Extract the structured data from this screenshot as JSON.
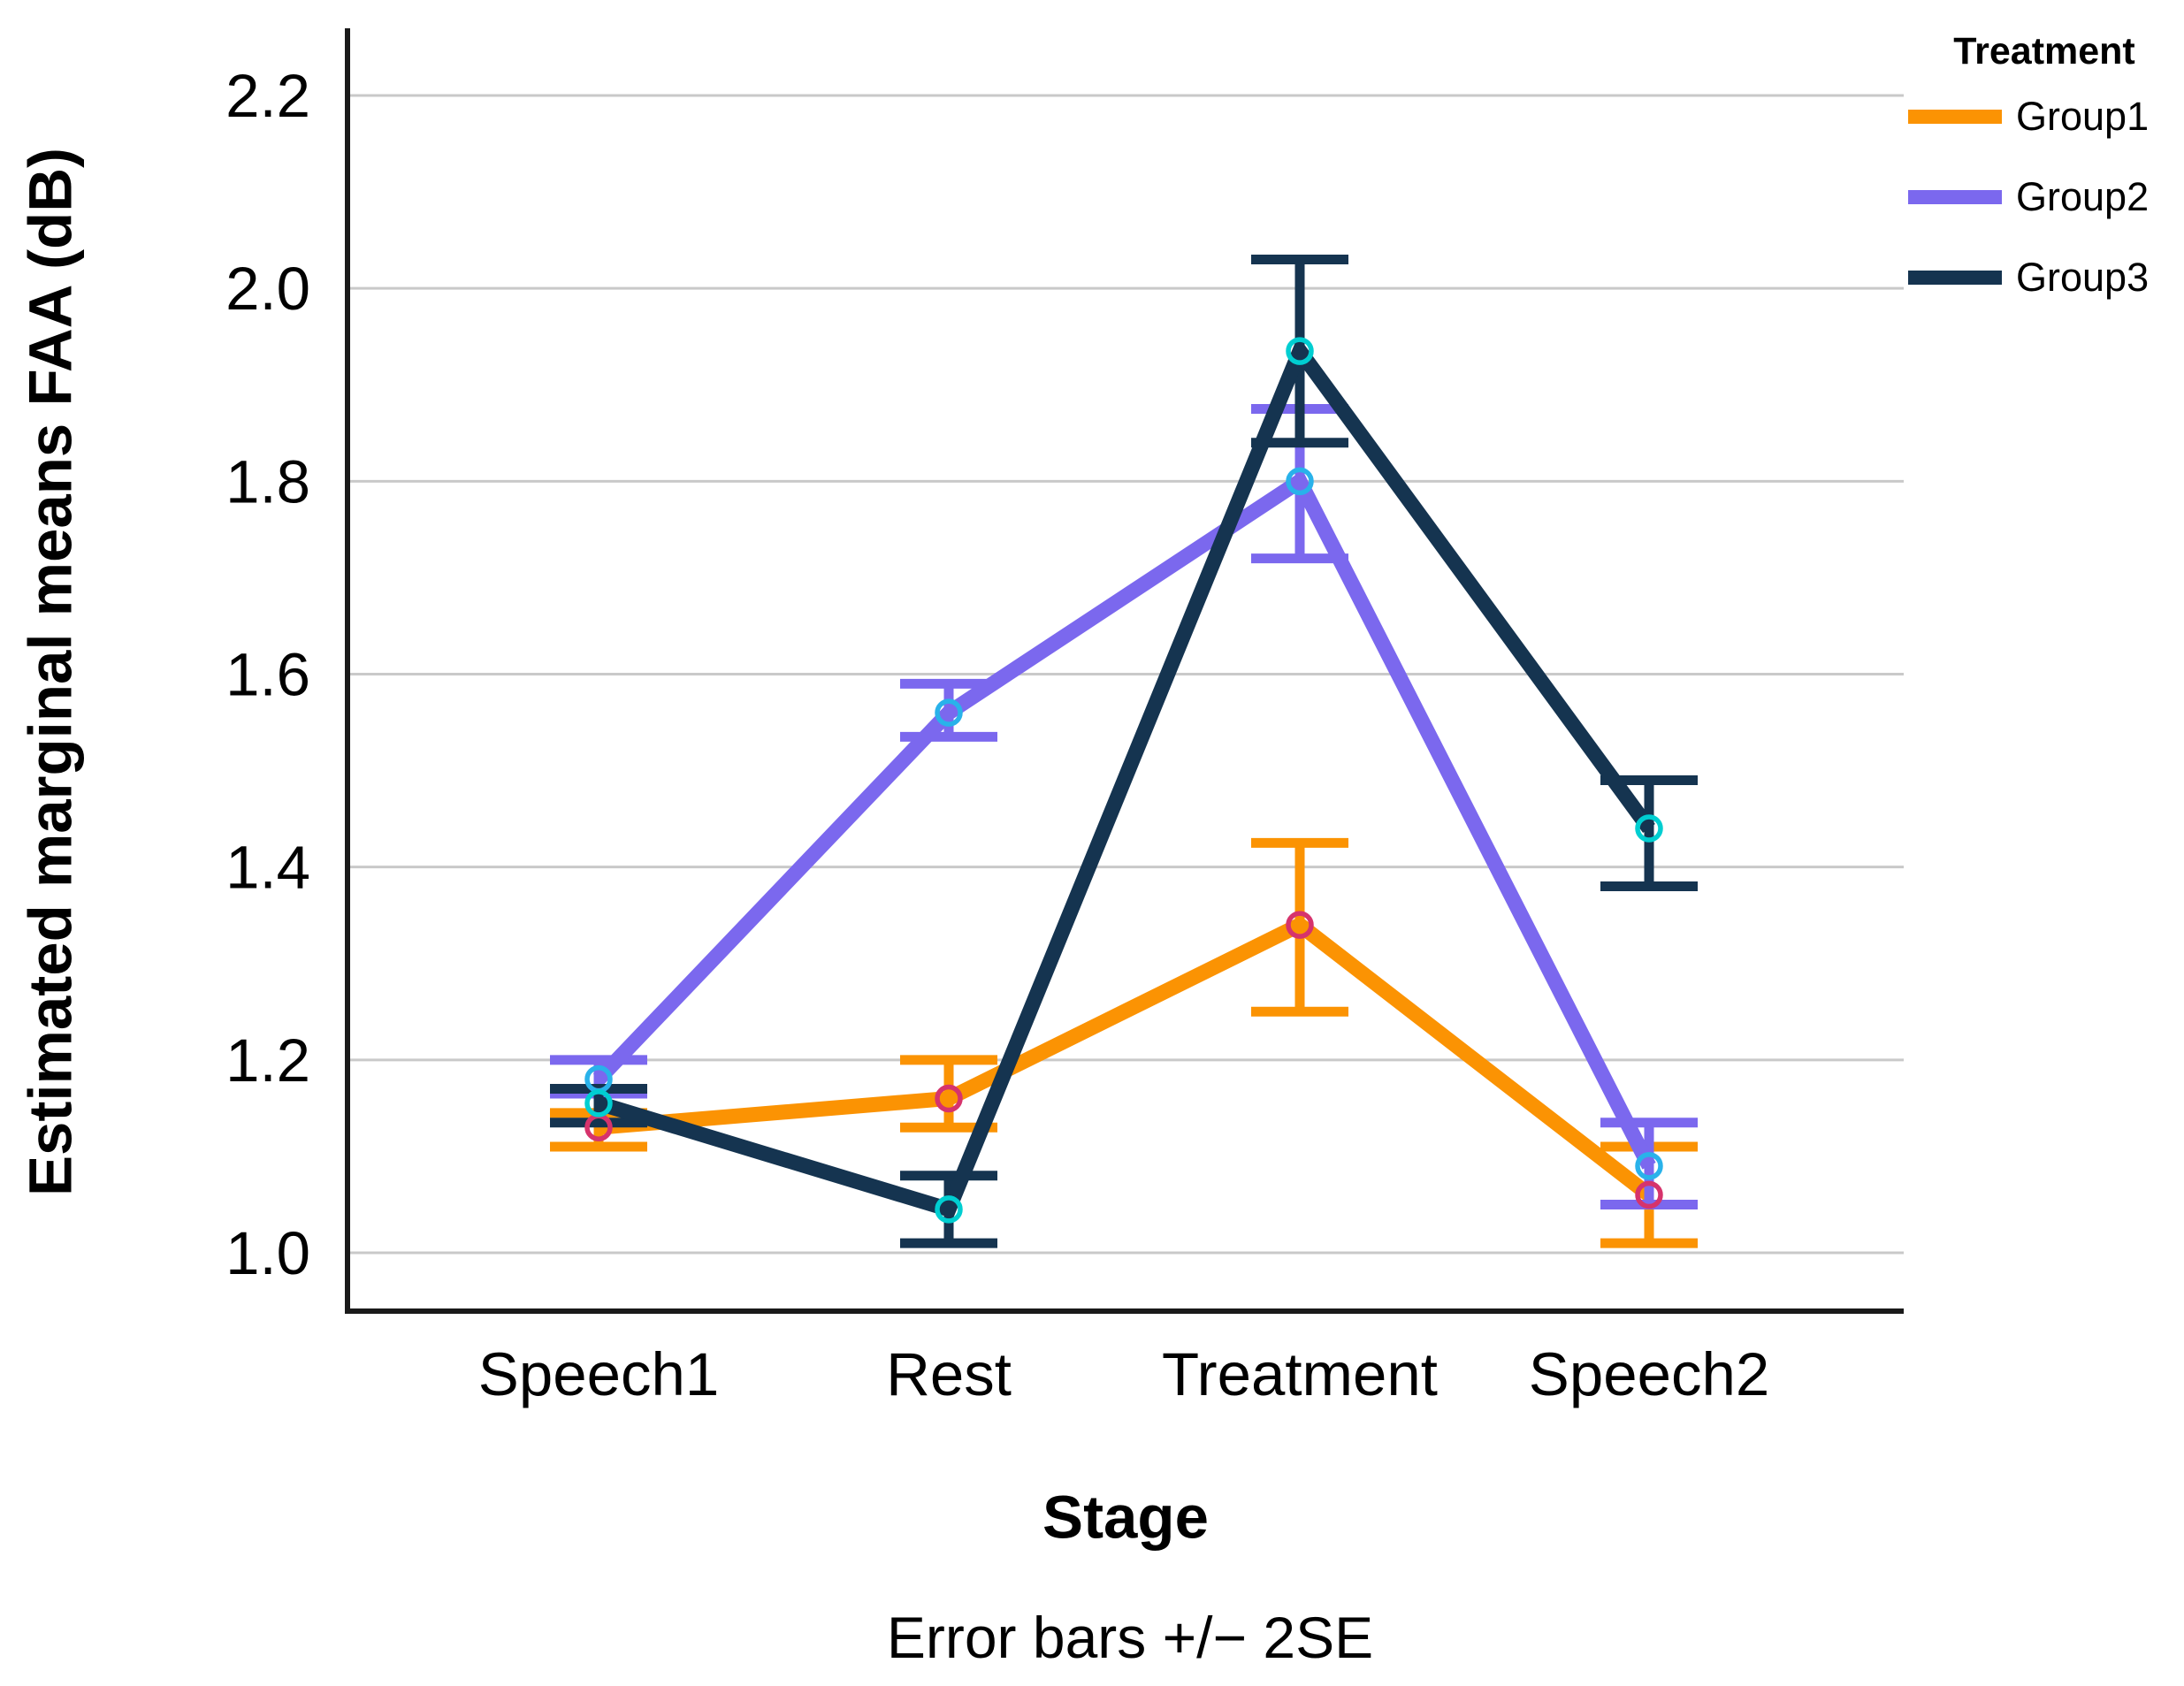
{
  "legend": {
    "title": "Treatment"
  },
  "chart_data": {
    "type": "line",
    "title": "",
    "xlabel": "Stage",
    "ylabel": "Estimated marginal means FAA (dB)",
    "caption": "Error bars +/− 2SE",
    "categories": [
      "Speech1",
      "Rest",
      "Treatment",
      "Speech2"
    ],
    "yticks": [
      1.0,
      1.2,
      1.4,
      1.6,
      1.8,
      2.0,
      2.2
    ],
    "ylim": [
      0.94,
      2.27
    ],
    "grid": true,
    "legend_position": "top-right",
    "gridline_color": "#c9c9c9",
    "axis_color": "#1a1a1a",
    "series": [
      {
        "name": "Group1",
        "color": "#FB9303",
        "marker_color": "#D6336C",
        "means": [
          1.13,
          1.16,
          1.34,
          1.06
        ],
        "upper": [
          1.145,
          1.2,
          1.425,
          1.11
        ],
        "lower": [
          1.11,
          1.13,
          1.25,
          1.01
        ]
      },
      {
        "name": "Group2",
        "color": "#7B68EE",
        "marker_color": "#29B2EA",
        "means": [
          1.18,
          1.56,
          1.8,
          1.09
        ],
        "upper": [
          1.2,
          1.59,
          1.875,
          1.135
        ],
        "lower": [
          1.165,
          1.535,
          1.72,
          1.05
        ]
      },
      {
        "name": "Group3",
        "color": "#153450",
        "marker_color": "#00CED1",
        "means": [
          1.155,
          1.045,
          1.935,
          1.44
        ],
        "upper": [
          1.17,
          1.08,
          2.03,
          1.49
        ],
        "lower": [
          1.135,
          1.01,
          1.84,
          1.38
        ]
      }
    ]
  }
}
